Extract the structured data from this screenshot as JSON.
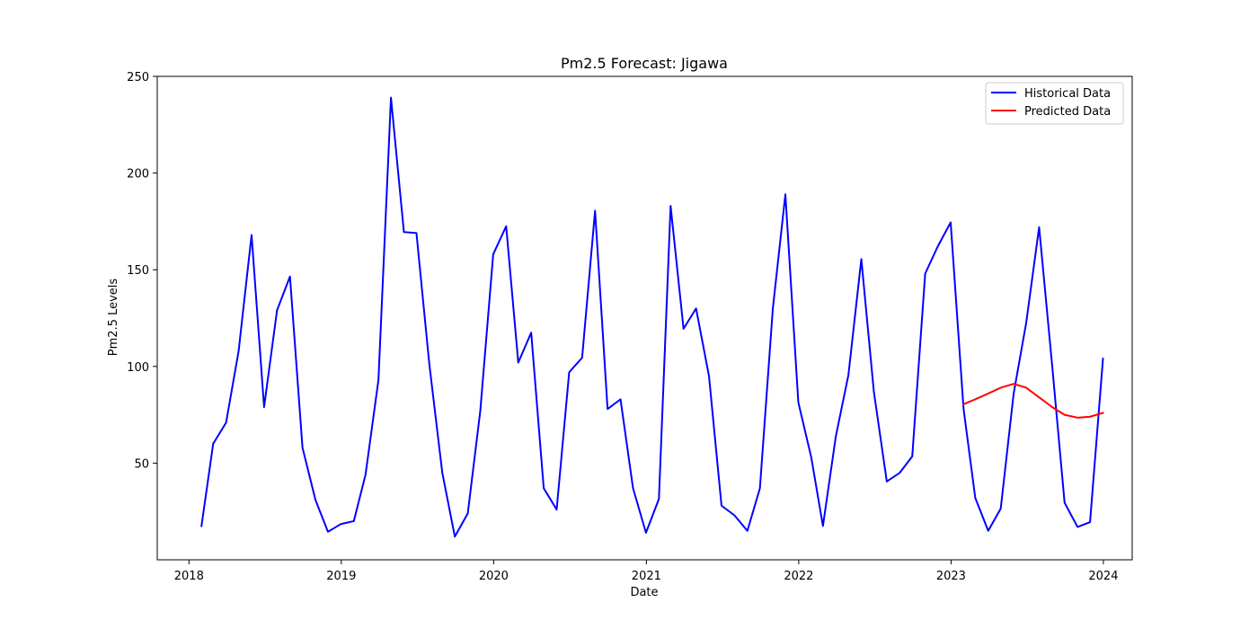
{
  "chart_data": {
    "type": "line",
    "title": "Pm2.5 Forecast: Jigawa",
    "xlabel": "Date",
    "ylabel": "Pm2.5 Levels",
    "xlim": [
      "2017-10-17",
      "2024-03-10"
    ],
    "ylim": [
      0,
      250
    ],
    "xticks": [
      "2018",
      "2019",
      "2020",
      "2021",
      "2022",
      "2023",
      "2024"
    ],
    "yticks": [
      50,
      100,
      150,
      200,
      250
    ],
    "grid": false,
    "legend": "top-right",
    "series": [
      {
        "name": "Historical Data",
        "color": "#0000ff",
        "x": [
          "2018-01-31",
          "2018-02-28",
          "2018-03-31",
          "2018-04-30",
          "2018-05-31",
          "2018-06-30",
          "2018-07-31",
          "2018-08-31",
          "2018-09-30",
          "2018-10-31",
          "2018-11-30",
          "2018-12-31",
          "2019-01-31",
          "2019-02-28",
          "2019-03-31",
          "2019-04-30",
          "2019-05-31",
          "2019-06-30",
          "2019-07-31",
          "2019-08-31",
          "2019-09-30",
          "2019-10-31",
          "2019-11-30",
          "2019-12-31",
          "2020-01-31",
          "2020-02-29",
          "2020-03-31",
          "2020-04-30",
          "2020-05-31",
          "2020-06-30",
          "2020-07-31",
          "2020-08-31",
          "2020-09-30",
          "2020-10-31",
          "2020-11-30",
          "2020-12-31",
          "2021-01-31",
          "2021-02-28",
          "2021-03-31",
          "2021-04-30",
          "2021-05-31",
          "2021-06-30",
          "2021-07-31",
          "2021-08-31",
          "2021-09-30",
          "2021-10-31",
          "2021-11-30",
          "2021-12-31",
          "2022-01-31",
          "2022-02-28",
          "2022-03-31",
          "2022-04-30",
          "2022-05-31",
          "2022-06-30",
          "2022-07-31",
          "2022-08-31",
          "2022-09-30",
          "2022-10-31",
          "2022-11-30",
          "2022-12-31",
          "2023-01-31",
          "2023-02-28",
          "2023-03-31",
          "2023-04-30",
          "2023-05-31",
          "2023-06-30",
          "2023-07-31",
          "2023-08-31",
          "2023-09-30",
          "2023-10-31",
          "2023-11-30",
          "2023-12-31"
        ],
        "values": [
          17.5,
          60,
          71,
          108,
          168,
          79,
          129,
          146.5,
          58,
          31,
          14.5,
          18.5,
          20,
          44,
          93,
          239,
          169.5,
          169,
          101,
          45,
          12,
          24,
          77,
          158,
          172.5,
          102,
          117.5,
          37,
          26,
          97,
          104.5,
          180.5,
          78,
          83,
          37,
          14,
          31.5,
          183,
          119.5,
          130,
          95,
          28,
          23,
          15,
          37,
          130,
          189,
          81.5,
          53,
          17.5,
          64,
          95.5,
          155.5,
          87,
          40.5,
          45,
          53.5,
          148,
          162,
          174.5,
          78,
          32,
          15,
          26.5,
          86,
          122.5,
          172,
          101,
          29.5,
          17,
          19.5,
          104
        ]
      },
      {
        "name": "Predicted Data",
        "color": "#ff0000",
        "x": [
          "2023-01-31",
          "2023-02-28",
          "2023-03-31",
          "2023-04-30",
          "2023-05-31",
          "2023-06-30",
          "2023-07-31",
          "2023-08-31",
          "2023-09-30",
          "2023-10-31",
          "2023-11-30",
          "2023-12-31"
        ],
        "values": [
          80.5,
          83,
          86,
          89,
          91,
          89,
          84,
          79,
          75,
          73.5,
          74,
          76
        ]
      }
    ]
  }
}
